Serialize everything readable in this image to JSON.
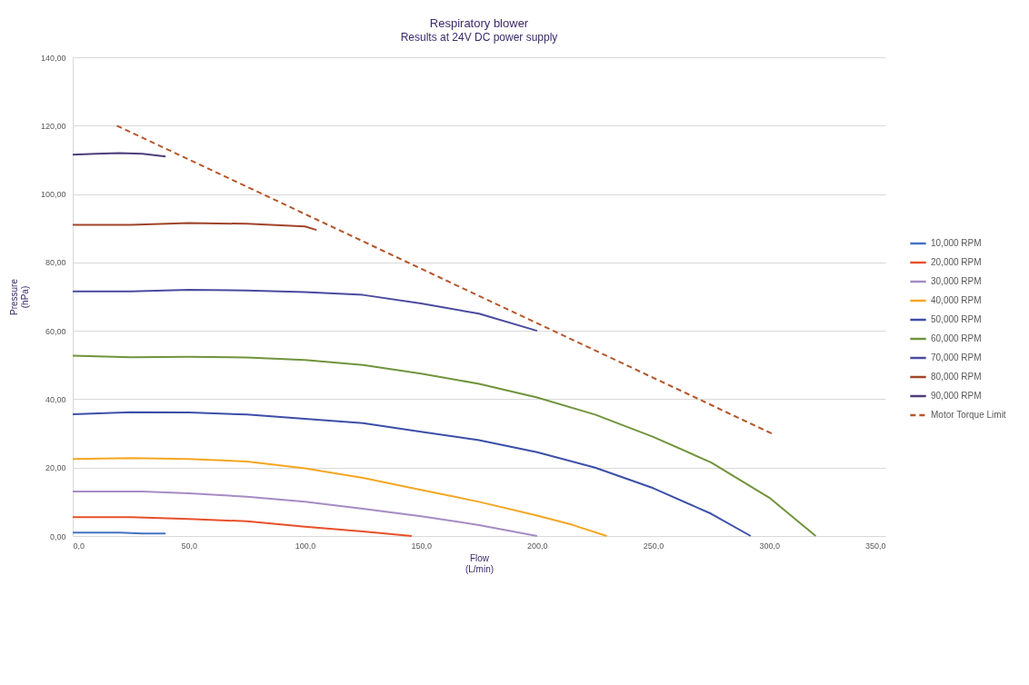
{
  "chart_data": {
    "type": "line",
    "title": "Respiratory blower",
    "subtitle": "Results at 24V DC power supply",
    "xlabel": "Flow\n(L/min)",
    "ylabel": "Pressure\n(hPa)",
    "xlim": [
      0,
      350
    ],
    "xticks": [
      {
        "value": 0,
        "label": "0,0"
      },
      {
        "value": 50,
        "label": "50,0"
      },
      {
        "value": 100,
        "label": "100,0"
      },
      {
        "value": 150,
        "label": "150,0"
      },
      {
        "value": 200,
        "label": "200,0"
      },
      {
        "value": 250,
        "label": "250,0"
      },
      {
        "value": 300,
        "label": "300,0"
      },
      {
        "value": 350,
        "label": "350,0"
      }
    ],
    "ylim": [
      0,
      140
    ],
    "yticks": [
      {
        "value": 0,
        "label": "0,00"
      },
      {
        "value": 20,
        "label": "20,00"
      },
      {
        "value": 40,
        "label": "40,00"
      },
      {
        "value": 60,
        "label": "60,00"
      },
      {
        "value": 80,
        "label": "80,00"
      },
      {
        "value": 100,
        "label": "100,00"
      },
      {
        "value": 120,
        "label": "120,00"
      },
      {
        "value": 140,
        "label": "140,00"
      }
    ],
    "grid": "y",
    "legend": "right",
    "marker": "none",
    "series": [
      {
        "name": "10,000 RPM",
        "color": "#4472c4",
        "x": [
          0,
          20,
          30,
          40
        ],
        "values": [
          1,
          1,
          0.7,
          0.7
        ]
      },
      {
        "name": "20,000 RPM",
        "color": "#e8502a",
        "x": [
          0,
          25,
          50,
          75,
          100,
          125,
          146
        ],
        "values": [
          5.5,
          5.5,
          5,
          4.3,
          2.7,
          1.3,
          0
        ]
      },
      {
        "name": "30,000 RPM",
        "color": "#a68bc4",
        "x": [
          0,
          30,
          50,
          75,
          100,
          125,
          150,
          175,
          200
        ],
        "values": [
          13,
          13,
          12.5,
          11.5,
          10,
          8,
          5.8,
          3.2,
          0
        ]
      },
      {
        "name": "40,000 RPM",
        "color": "#f5a623",
        "x": [
          0,
          25,
          50,
          75,
          100,
          125,
          150,
          175,
          200,
          215,
          230
        ],
        "values": [
          22.5,
          22.8,
          22.5,
          21.8,
          19.8,
          17,
          13.5,
          10,
          6,
          3.3,
          0
        ]
      },
      {
        "name": "50,000 RPM",
        "color": "#3c4fa8",
        "x": [
          0,
          25,
          50,
          75,
          100,
          125,
          150,
          175,
          200,
          225,
          250,
          275,
          292
        ],
        "values": [
          35.6,
          36.2,
          36.1,
          35.5,
          34.3,
          33,
          30.5,
          28,
          24.5,
          20,
          14,
          6.5,
          0
        ]
      },
      {
        "name": "60,000 RPM",
        "color": "#70943c",
        "x": [
          0,
          25,
          50,
          75,
          100,
          125,
          150,
          175,
          200,
          225,
          250,
          275,
          300,
          320
        ],
        "values": [
          52.7,
          52.3,
          52.4,
          52.2,
          51.5,
          50,
          47.5,
          44.5,
          40.5,
          35.5,
          29,
          21.5,
          11.2,
          0
        ]
      },
      {
        "name": "70,000 RPM",
        "color": "#4a4aa0",
        "x": [
          0,
          25,
          50,
          75,
          100,
          125,
          150,
          175,
          200
        ],
        "values": [
          71.5,
          71.5,
          72,
          71.8,
          71.3,
          70.5,
          68,
          65,
          60
        ]
      },
      {
        "name": "80,000 RPM",
        "color": "#a0442a",
        "x": [
          0,
          25,
          50,
          75,
          100,
          105
        ],
        "values": [
          91,
          91,
          91.5,
          91.3,
          90.5,
          89.5
        ]
      },
      {
        "name": "90,000 RPM",
        "color": "#4e3d7a",
        "x": [
          0,
          10,
          20,
          30,
          40
        ],
        "values": [
          111.5,
          111.8,
          112,
          111.8,
          111
        ]
      },
      {
        "name": "Motor Torque Limit",
        "color": "#b5562a",
        "line_style": "dashed",
        "x": [
          19,
          301
        ],
        "values": [
          120,
          30
        ]
      }
    ]
  }
}
